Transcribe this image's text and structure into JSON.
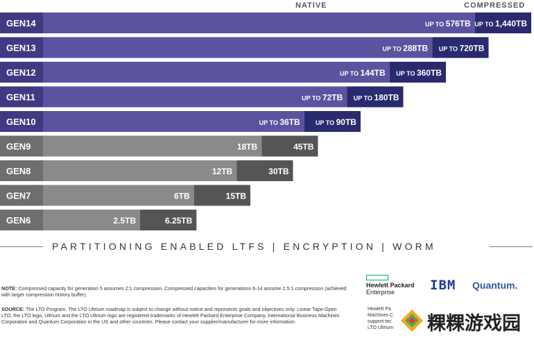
{
  "chart_data": {
    "type": "bar",
    "orientation": "horizontal",
    "stacked": true,
    "legend_headers": [
      "NATIVE",
      "COMPRESSED"
    ],
    "categories": [
      "GEN14",
      "GEN13",
      "GEN12",
      "GEN11",
      "GEN10",
      "GEN9",
      "GEN8",
      "GEN7",
      "GEN6"
    ],
    "series": [
      {
        "name": "NATIVE",
        "values": [
          576,
          288,
          144,
          72,
          36,
          18,
          12,
          6,
          2.5
        ]
      },
      {
        "name": "COMPRESSED",
        "values": [
          1440,
          720,
          360,
          180,
          90,
          45,
          30,
          15,
          6.25
        ]
      }
    ],
    "native_labels": [
      {
        "prefix": "UP TO",
        "value": "576TB"
      },
      {
        "prefix": "UP TO",
        "value": "288TB"
      },
      {
        "prefix": "UP TO",
        "value": "144TB"
      },
      {
        "prefix": "UP TO",
        "value": "72TB"
      },
      {
        "prefix": "UP TO",
        "value": "36TB"
      },
      {
        "prefix": "",
        "value": "18TB"
      },
      {
        "prefix": "",
        "value": "12TB"
      },
      {
        "prefix": "",
        "value": "6TB"
      },
      {
        "prefix": "",
        "value": "2.5TB"
      }
    ],
    "compressed_labels": [
      {
        "prefix": "UP TO",
        "value": "1,440TB"
      },
      {
        "prefix": "UP TO",
        "value": "720TB"
      },
      {
        "prefix": "UP TO",
        "value": "360TB"
      },
      {
        "prefix": "UP TO",
        "value": "180TB"
      },
      {
        "prefix": "UP TO",
        "value": "90TB"
      },
      {
        "prefix": "",
        "value": "45TB"
      },
      {
        "prefix": "",
        "value": "30TB"
      },
      {
        "prefix": "",
        "value": "15TB"
      },
      {
        "prefix": "",
        "value": "6.25TB"
      }
    ],
    "scale": "logarithmic",
    "colors": {
      "future_label": "#3f3a82",
      "future_native": "#5b539f",
      "future_compressed": "#2a2a6e",
      "current_label": "#6e6e6e",
      "current_native": "#8a8a8a",
      "current_compressed": "#555555"
    }
  },
  "features": "PARTITIONING ENABLED LTFS  |  ENCRYPTION  |  WORM",
  "note": {
    "label": "NOTE:",
    "text": "Compressed capacity for generation 5 assumes 2:1 compression. Compressed capacities for generations 6-14 assume 2.5:1 compression (achieved with larger compression history buffer)."
  },
  "source": {
    "label": "SOURCE:",
    "text": "The LTO Program. The LTO Ultrium roadmap is subject to change without notice and represents goals and objectives only. Linear Tape-Open LTO, the LTO logo, Ultrium and the LTO Ultrium logo are registered trademarks of Hewlett Packard Enterprise Company, International Business Machines Corporation and Quantum Corporation in the US and other countries. Please contact your supplier/manufacturer for more information."
  },
  "logos": {
    "hpe_line1": "Hewlett Packard",
    "hpe_line2": "Enterprise",
    "ibm": "IBM",
    "quantum": "Quantum."
  },
  "partial_text": [
    "Hewlett Pa",
    "Machines C",
    "support tec",
    "LTO Ultrium"
  ],
  "watermark": "粿粿游戏园"
}
